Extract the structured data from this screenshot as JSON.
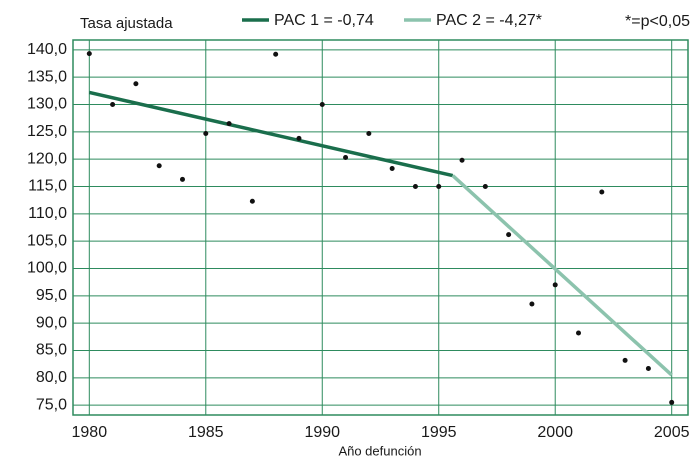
{
  "chart_data": {
    "type": "scatter",
    "y_axis_label": "Tasa ajustada",
    "x_axis_label": "Año defunción",
    "annotation": "*=p<0,05",
    "points": {
      "color": "#111111",
      "x": [
        1980,
        1981,
        1982,
        1983,
        1984,
        1985,
        1986,
        1987,
        1988,
        1989,
        1990,
        1991,
        1992,
        1993,
        1994,
        1995,
        1996,
        1997,
        1998,
        1999,
        2000,
        2001,
        2002,
        2003,
        2004,
        2005
      ],
      "values": [
        139.3,
        130.0,
        133.8,
        118.8,
        116.3,
        124.7,
        126.5,
        112.3,
        139.2,
        123.8,
        130.0,
        120.3,
        124.7,
        118.3,
        115.0,
        115.0,
        119.8,
        115.0,
        106.2,
        93.5,
        97.0,
        88.2,
        114.0,
        83.2,
        81.7,
        75.5
      ]
    },
    "series": [
      {
        "name": "PAC 1 = -0,74",
        "color": "#1a6e4c",
        "x": [
          1980,
          1995.6
        ],
        "values": [
          132.2,
          117.0
        ]
      },
      {
        "name": "PAC 2 = -4,27*",
        "color": "#8cc3ad",
        "x": [
          1995.6,
          2005
        ],
        "values": [
          117.0,
          80.5
        ]
      }
    ],
    "xlim": [
      1979.3,
      2005.7
    ],
    "xticks": [
      1980,
      1985,
      1990,
      1995,
      2000,
      2005
    ],
    "ylim": [
      73.2,
      141.8
    ],
    "yticks": [
      {
        "value": 75,
        "label": "75,0"
      },
      {
        "value": 80,
        "label": "80,0"
      },
      {
        "value": 85,
        "label": "85,0"
      },
      {
        "value": 90,
        "label": "90,0"
      },
      {
        "value": 95,
        "label": "95,0"
      },
      {
        "value": 100,
        "label": "100,0"
      },
      {
        "value": 105,
        "label": "105,0"
      },
      {
        "value": 110,
        "label": "110,0"
      },
      {
        "value": 115,
        "label": "115,0"
      },
      {
        "value": 120,
        "label": "120,0"
      },
      {
        "value": 125,
        "label": "125,0"
      },
      {
        "value": 130,
        "label": "130,0"
      },
      {
        "value": 135,
        "label": "135,0"
      },
      {
        "value": 140,
        "label": "140,0"
      }
    ],
    "grid": true,
    "grid_color": "#2e8b5e"
  }
}
